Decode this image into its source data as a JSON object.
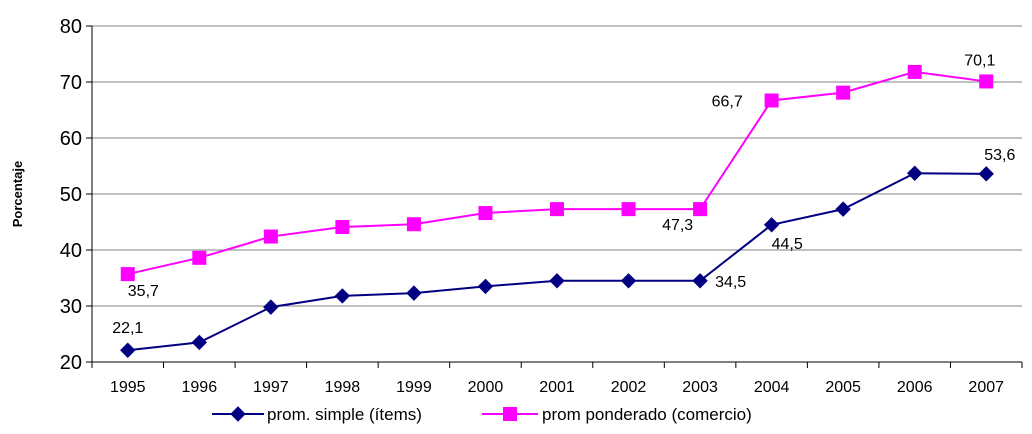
{
  "chart_data": {
    "type": "line",
    "title": "",
    "xlabel": "",
    "ylabel": "Porcentaje",
    "ylim": [
      20,
      80
    ],
    "yticks": [
      "20",
      "30",
      "40",
      "50",
      "60",
      "70",
      "80"
    ],
    "categories": [
      "1995",
      "1996",
      "1997",
      "1998",
      "1999",
      "2000",
      "2001",
      "2002",
      "2003",
      "2004",
      "2005",
      "2006",
      "2007"
    ],
    "grid": true,
    "legend_position": "bottom",
    "series": [
      {
        "name": "prom. simple (ítems)",
        "color": "#000080",
        "marker": "diamond",
        "values": [
          22.1,
          23.5,
          29.8,
          31.8,
          32.3,
          33.5,
          34.5,
          34.5,
          34.5,
          44.5,
          47.3,
          53.7,
          53.6
        ]
      },
      {
        "name": "prom ponderado (comercio)",
        "color": "#FF00FF",
        "marker": "square",
        "values": [
          35.7,
          38.6,
          42.4,
          44.1,
          44.6,
          46.6,
          47.3,
          47.3,
          47.3,
          66.7,
          68.1,
          71.8,
          70.1
        ]
      }
    ],
    "data_labels": [
      {
        "series": 0,
        "index": 0,
        "text": "22,1"
      },
      {
        "series": 0,
        "index": 8,
        "text": "34,5"
      },
      {
        "series": 0,
        "index": 9,
        "text": "44,5"
      },
      {
        "series": 0,
        "index": 12,
        "text": "53,6"
      },
      {
        "series": 1,
        "index": 0,
        "text": "35,7"
      },
      {
        "series": 1,
        "index": 8,
        "text": "47,3"
      },
      {
        "series": 1,
        "index": 9,
        "text": "66,7"
      },
      {
        "series": 1,
        "index": 12,
        "text": "70,1"
      }
    ]
  }
}
